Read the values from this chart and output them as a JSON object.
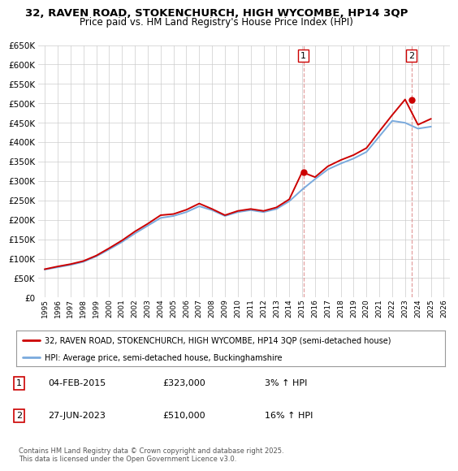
{
  "title1": "32, RAVEN ROAD, STOKENCHURCH, HIGH WYCOMBE, HP14 3QP",
  "title2": "Price paid vs. HM Land Registry's House Price Index (HPI)",
  "legend_line1": "32, RAVEN ROAD, STOKENCHURCH, HIGH WYCOMBE, HP14 3QP (semi-detached house)",
  "legend_line2": "HPI: Average price, semi-detached house, Buckinghamshire",
  "footer": "Contains HM Land Registry data © Crown copyright and database right 2025.\nThis data is licensed under the Open Government Licence v3.0.",
  "sale1_label": "1",
  "sale1_date": "04-FEB-2015",
  "sale1_price": "£323,000",
  "sale1_hpi": "3% ↑ HPI",
  "sale1_year": 2015.09,
  "sale1_value": 323000,
  "sale2_label": "2",
  "sale2_date": "27-JUN-2023",
  "sale2_price": "£510,000",
  "sale2_hpi": "16% ↑ HPI",
  "sale2_year": 2023.49,
  "sale2_value": 510000,
  "color_red": "#cc0000",
  "color_blue": "#7aaadd",
  "color_dashed": "#cc0000",
  "ylim_min": 0,
  "ylim_max": 650000,
  "xlim_min": 1994.5,
  "xlim_max": 2026.5,
  "background_color": "#ffffff",
  "grid_color": "#cccccc",
  "hpi_years": [
    1995,
    1996,
    1997,
    1998,
    1999,
    2000,
    2001,
    2002,
    2003,
    2004,
    2005,
    2006,
    2007,
    2008,
    2009,
    2010,
    2011,
    2012,
    2013,
    2014,
    2015,
    2016,
    2017,
    2018,
    2019,
    2020,
    2021,
    2022,
    2023,
    2024,
    2025
  ],
  "hpi_values": [
    72000,
    78000,
    84000,
    92000,
    106000,
    124000,
    143000,
    165000,
    185000,
    205000,
    210000,
    220000,
    235000,
    225000,
    210000,
    220000,
    225000,
    220000,
    228000,
    248000,
    278000,
    305000,
    330000,
    345000,
    358000,
    375000,
    415000,
    455000,
    450000,
    435000,
    440000
  ],
  "price_years": [
    1995,
    1996,
    1997,
    1998,
    1999,
    2000,
    2001,
    2002,
    2003,
    2004,
    2005,
    2006,
    2007,
    2008,
    2009,
    2010,
    2011,
    2012,
    2013,
    2014,
    2015,
    2016,
    2017,
    2018,
    2019,
    2020,
    2021,
    2022,
    2023,
    2024,
    2025
  ],
  "price_values": [
    73000,
    80000,
    86000,
    94000,
    108000,
    127000,
    147000,
    170000,
    190000,
    212000,
    215000,
    226000,
    242000,
    228000,
    212000,
    223000,
    228000,
    223000,
    232000,
    253000,
    323000,
    310000,
    338000,
    354000,
    367000,
    385000,
    428000,
    470000,
    510000,
    445000,
    460000
  ]
}
